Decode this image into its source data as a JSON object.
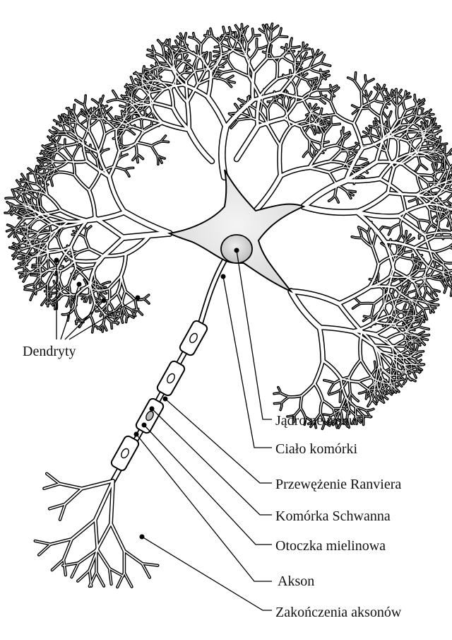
{
  "labels": {
    "dendrites": "Dendryty",
    "nucleus": "Jądro neuronu",
    "cell_body": "Ciało komórki",
    "node_of_ranvier": "Przewężenie Ranviera",
    "schwann_cell": "Komórka Schwanna",
    "myelin_sheath": "Otoczka mielinowa",
    "axon": "Akson",
    "axon_terminals": "Zakończenia aksonów"
  },
  "colors": {
    "outline": "#000000",
    "fill": "#ffffff",
    "soma_shade": "#dcdcdc",
    "text": "#111111"
  }
}
